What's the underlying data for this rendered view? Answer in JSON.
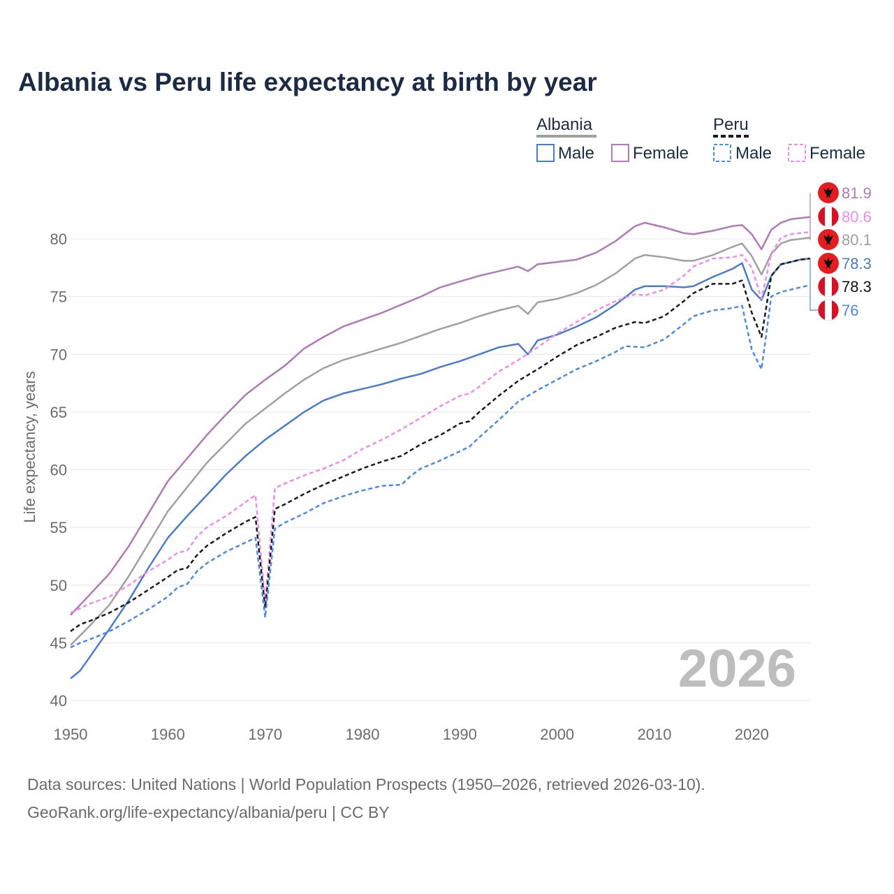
{
  "chart_data": {
    "type": "line",
    "title": "Albania vs Peru life expectancy at birth by year",
    "xlabel": "",
    "ylabel": "Life expectancy, years",
    "xlim": [
      1950,
      2026
    ],
    "ylim": [
      40,
      84
    ],
    "xticks": [
      "1950",
      "1960",
      "1970",
      "1980",
      "1990",
      "2000",
      "2010",
      "2020"
    ],
    "yticks": [
      "40",
      "45",
      "50",
      "55",
      "60",
      "65",
      "70",
      "75",
      "80"
    ],
    "current_year": "2026",
    "legend": {
      "groups": [
        {
          "name": "Albania",
          "items": [
            "Male",
            "Female"
          ]
        },
        {
          "name": "Peru",
          "items": [
            "Male",
            "Female"
          ]
        }
      ]
    },
    "colors": {
      "albania_total": "#a0a0a0",
      "albania_male": "#4a7cc9",
      "albania_female": "#b07ab8",
      "peru_total": "#1a1a1a",
      "peru_male": "#4a8be0",
      "peru_female": "#f08ce8"
    },
    "series": [
      {
        "name": "Albania Female",
        "key": "albania_female",
        "dashed": false,
        "end_label": "81.9",
        "points": [
          [
            1950,
            47.4
          ],
          [
            1952,
            49.2
          ],
          [
            1954,
            51.0
          ],
          [
            1956,
            53.4
          ],
          [
            1958,
            56.2
          ],
          [
            1960,
            59.0
          ],
          [
            1962,
            61.0
          ],
          [
            1964,
            63.0
          ],
          [
            1966,
            64.8
          ],
          [
            1968,
            66.5
          ],
          [
            1970,
            67.8
          ],
          [
            1972,
            69.0
          ],
          [
            1974,
            70.5
          ],
          [
            1976,
            71.5
          ],
          [
            1978,
            72.4
          ],
          [
            1980,
            73.0
          ],
          [
            1982,
            73.6
          ],
          [
            1984,
            74.3
          ],
          [
            1986,
            75.0
          ],
          [
            1988,
            75.8
          ],
          [
            1990,
            76.3
          ],
          [
            1992,
            76.8
          ],
          [
            1994,
            77.2
          ],
          [
            1996,
            77.6
          ],
          [
            1997,
            77.2
          ],
          [
            1998,
            77.8
          ],
          [
            2000,
            78.0
          ],
          [
            2002,
            78.2
          ],
          [
            2004,
            78.8
          ],
          [
            2006,
            79.8
          ],
          [
            2008,
            81.1
          ],
          [
            2009,
            81.4
          ],
          [
            2011,
            81.0
          ],
          [
            2013,
            80.5
          ],
          [
            2014,
            80.4
          ],
          [
            2016,
            80.7
          ],
          [
            2018,
            81.1
          ],
          [
            2019,
            81.2
          ],
          [
            2020,
            80.4
          ],
          [
            2021,
            79.1
          ],
          [
            2022,
            80.8
          ],
          [
            2023,
            81.4
          ],
          [
            2024,
            81.7
          ],
          [
            2025,
            81.8
          ],
          [
            2026,
            81.9
          ]
        ]
      },
      {
        "name": "Albania",
        "key": "albania_total",
        "dashed": false,
        "end_label": "80.1",
        "points": [
          [
            1950,
            44.8
          ],
          [
            1952,
            46.5
          ],
          [
            1954,
            48.3
          ],
          [
            1956,
            50.8
          ],
          [
            1958,
            53.6
          ],
          [
            1960,
            56.4
          ],
          [
            1962,
            58.5
          ],
          [
            1964,
            60.6
          ],
          [
            1966,
            62.3
          ],
          [
            1968,
            64.0
          ],
          [
            1970,
            65.3
          ],
          [
            1972,
            66.6
          ],
          [
            1974,
            67.8
          ],
          [
            1976,
            68.8
          ],
          [
            1978,
            69.5
          ],
          [
            1980,
            70.0
          ],
          [
            1982,
            70.5
          ],
          [
            1984,
            71.0
          ],
          [
            1986,
            71.6
          ],
          [
            1988,
            72.2
          ],
          [
            1990,
            72.7
          ],
          [
            1992,
            73.3
          ],
          [
            1994,
            73.8
          ],
          [
            1996,
            74.2
          ],
          [
            1997,
            73.5
          ],
          [
            1998,
            74.5
          ],
          [
            2000,
            74.8
          ],
          [
            2002,
            75.3
          ],
          [
            2004,
            76.0
          ],
          [
            2006,
            77.0
          ],
          [
            2008,
            78.3
          ],
          [
            2009,
            78.6
          ],
          [
            2011,
            78.4
          ],
          [
            2013,
            78.1
          ],
          [
            2014,
            78.1
          ],
          [
            2016,
            78.6
          ],
          [
            2018,
            79.3
          ],
          [
            2019,
            79.6
          ],
          [
            2020,
            78.5
          ],
          [
            2021,
            76.9
          ],
          [
            2022,
            78.7
          ],
          [
            2023,
            79.6
          ],
          [
            2024,
            79.9
          ],
          [
            2025,
            80.0
          ],
          [
            2026,
            80.1
          ]
        ]
      },
      {
        "name": "Albania Male",
        "key": "albania_male",
        "dashed": false,
        "end_label": "78.3",
        "points": [
          [
            1950,
            41.9
          ],
          [
            1951,
            42.6
          ],
          [
            1952,
            43.8
          ],
          [
            1954,
            46.2
          ],
          [
            1956,
            48.7
          ],
          [
            1958,
            51.5
          ],
          [
            1960,
            54.1
          ],
          [
            1962,
            56.0
          ],
          [
            1964,
            57.8
          ],
          [
            1966,
            59.6
          ],
          [
            1968,
            61.2
          ],
          [
            1970,
            62.6
          ],
          [
            1972,
            63.8
          ],
          [
            1974,
            65.0
          ],
          [
            1976,
            66.0
          ],
          [
            1978,
            66.6
          ],
          [
            1980,
            67.0
          ],
          [
            1982,
            67.4
          ],
          [
            1984,
            67.9
          ],
          [
            1986,
            68.3
          ],
          [
            1988,
            68.9
          ],
          [
            1990,
            69.4
          ],
          [
            1992,
            70.0
          ],
          [
            1994,
            70.6
          ],
          [
            1996,
            70.9
          ],
          [
            1997,
            70.0
          ],
          [
            1998,
            71.2
          ],
          [
            2000,
            71.7
          ],
          [
            2002,
            72.4
          ],
          [
            2004,
            73.2
          ],
          [
            2006,
            74.3
          ],
          [
            2008,
            75.6
          ],
          [
            2009,
            75.9
          ],
          [
            2011,
            75.9
          ],
          [
            2013,
            75.8
          ],
          [
            2014,
            75.9
          ],
          [
            2016,
            76.7
          ],
          [
            2018,
            77.4
          ],
          [
            2019,
            77.9
          ],
          [
            2020,
            75.6
          ],
          [
            2021,
            74.7
          ],
          [
            2022,
            76.8
          ],
          [
            2023,
            77.8
          ],
          [
            2024,
            78.0
          ],
          [
            2025,
            78.2
          ],
          [
            2026,
            78.3
          ]
        ]
      },
      {
        "name": "Peru Female",
        "key": "peru_female",
        "dashed": true,
        "end_label": "80.6",
        "points": [
          [
            1950,
            47.6
          ],
          [
            1952,
            48.4
          ],
          [
            1954,
            49.0
          ],
          [
            1956,
            50.0
          ],
          [
            1958,
            51.2
          ],
          [
            1960,
            52.2
          ],
          [
            1961,
            52.8
          ],
          [
            1962,
            53.0
          ],
          [
            1963,
            54.2
          ],
          [
            1964,
            55.0
          ],
          [
            1966,
            56.0
          ],
          [
            1968,
            57.2
          ],
          [
            1969,
            57.8
          ],
          [
            1970,
            48.5
          ],
          [
            1971,
            58.4
          ],
          [
            1972,
            58.8
          ],
          [
            1974,
            59.5
          ],
          [
            1976,
            60.1
          ],
          [
            1978,
            60.8
          ],
          [
            1980,
            61.8
          ],
          [
            1982,
            62.6
          ],
          [
            1984,
            63.5
          ],
          [
            1986,
            64.5
          ],
          [
            1988,
            65.5
          ],
          [
            1990,
            66.4
          ],
          [
            1991,
            66.6
          ],
          [
            1992,
            67.2
          ],
          [
            1994,
            68.5
          ],
          [
            1996,
            69.5
          ],
          [
            1998,
            70.6
          ],
          [
            2000,
            71.8
          ],
          [
            2002,
            72.8
          ],
          [
            2004,
            73.8
          ],
          [
            2006,
            74.6
          ],
          [
            2008,
            75.2
          ],
          [
            2009,
            75.1
          ],
          [
            2011,
            75.6
          ],
          [
            2013,
            76.8
          ],
          [
            2014,
            77.6
          ],
          [
            2016,
            78.3
          ],
          [
            2018,
            78.4
          ],
          [
            2019,
            78.6
          ],
          [
            2020,
            77.5
          ],
          [
            2021,
            74.8
          ],
          [
            2022,
            78.7
          ],
          [
            2023,
            80.1
          ],
          [
            2024,
            80.4
          ],
          [
            2025,
            80.5
          ],
          [
            2026,
            80.6
          ]
        ]
      },
      {
        "name": "Peru",
        "key": "peru_total",
        "dashed": true,
        "end_label": "78.3",
        "points": [
          [
            1950,
            46.0
          ],
          [
            1951,
            46.6
          ],
          [
            1952,
            46.9
          ],
          [
            1954,
            47.6
          ],
          [
            1956,
            48.5
          ],
          [
            1958,
            49.6
          ],
          [
            1960,
            50.7
          ],
          [
            1961,
            51.3
          ],
          [
            1962,
            51.5
          ],
          [
            1963,
            52.6
          ],
          [
            1964,
            53.4
          ],
          [
            1966,
            54.5
          ],
          [
            1968,
            55.5
          ],
          [
            1969,
            55.9
          ],
          [
            1970,
            48.0
          ],
          [
            1971,
            56.6
          ],
          [
            1972,
            57.0
          ],
          [
            1974,
            57.9
          ],
          [
            1976,
            58.7
          ],
          [
            1978,
            59.4
          ],
          [
            1980,
            60.1
          ],
          [
            1982,
            60.7
          ],
          [
            1984,
            61.2
          ],
          [
            1986,
            62.2
          ],
          [
            1988,
            63.0
          ],
          [
            1990,
            64.0
          ],
          [
            1991,
            64.2
          ],
          [
            1992,
            65.0
          ],
          [
            1994,
            66.4
          ],
          [
            1996,
            67.7
          ],
          [
            1998,
            68.7
          ],
          [
            2000,
            69.8
          ],
          [
            2002,
            70.8
          ],
          [
            2004,
            71.5
          ],
          [
            2006,
            72.3
          ],
          [
            2008,
            72.8
          ],
          [
            2009,
            72.7
          ],
          [
            2011,
            73.3
          ],
          [
            2013,
            74.6
          ],
          [
            2014,
            75.3
          ],
          [
            2016,
            76.1
          ],
          [
            2018,
            76.1
          ],
          [
            2019,
            76.4
          ],
          [
            2020,
            73.6
          ],
          [
            2021,
            71.5
          ],
          [
            2022,
            76.8
          ],
          [
            2023,
            77.8
          ],
          [
            2024,
            78.0
          ],
          [
            2025,
            78.2
          ],
          [
            2026,
            78.3
          ]
        ]
      },
      {
        "name": "Peru Male",
        "key": "peru_male",
        "dashed": true,
        "end_label": "76",
        "points": [
          [
            1950,
            44.6
          ],
          [
            1951,
            45.0
          ],
          [
            1952,
            45.3
          ],
          [
            1954,
            46.0
          ],
          [
            1956,
            46.9
          ],
          [
            1958,
            47.9
          ],
          [
            1960,
            49.0
          ],
          [
            1961,
            49.8
          ],
          [
            1962,
            50.1
          ],
          [
            1963,
            51.2
          ],
          [
            1964,
            51.9
          ],
          [
            1966,
            52.9
          ],
          [
            1968,
            53.7
          ],
          [
            1969,
            54.1
          ],
          [
            1970,
            47.2
          ],
          [
            1971,
            54.9
          ],
          [
            1972,
            55.4
          ],
          [
            1974,
            56.2
          ],
          [
            1976,
            57.1
          ],
          [
            1978,
            57.7
          ],
          [
            1980,
            58.2
          ],
          [
            1982,
            58.6
          ],
          [
            1984,
            58.7
          ],
          [
            1985,
            59.5
          ],
          [
            1986,
            60.1
          ],
          [
            1988,
            60.8
          ],
          [
            1990,
            61.6
          ],
          [
            1991,
            62.0
          ],
          [
            1992,
            62.8
          ],
          [
            1994,
            64.3
          ],
          [
            1996,
            65.9
          ],
          [
            1998,
            66.9
          ],
          [
            2000,
            67.8
          ],
          [
            2002,
            68.7
          ],
          [
            2004,
            69.4
          ],
          [
            2006,
            70.2
          ],
          [
            2007,
            70.7
          ],
          [
            2009,
            70.6
          ],
          [
            2011,
            71.3
          ],
          [
            2013,
            72.6
          ],
          [
            2014,
            73.3
          ],
          [
            2016,
            73.8
          ],
          [
            2018,
            74.0
          ],
          [
            2019,
            74.2
          ],
          [
            2020,
            70.4
          ],
          [
            2021,
            68.7
          ],
          [
            2022,
            75.0
          ],
          [
            2023,
            75.4
          ],
          [
            2024,
            75.6
          ],
          [
            2025,
            75.8
          ],
          [
            2026,
            76.0
          ]
        ]
      }
    ],
    "end_labels": [
      {
        "key": "albania_female",
        "flag": "albania",
        "text": "81.9"
      },
      {
        "key": "peru_female",
        "flag": "peru",
        "text": "80.6"
      },
      {
        "key": "albania_total",
        "flag": "albania",
        "text": "80.1"
      },
      {
        "key": "albania_male",
        "flag": "albania",
        "text": "78.3"
      },
      {
        "key": "peru_total",
        "flag": "peru",
        "text": "78.3"
      },
      {
        "key": "peru_male",
        "flag": "peru",
        "text": "76"
      }
    ]
  },
  "footer": {
    "source_line1": "Data sources: United Nations | World Population Prospects (1950–2026, retrieved 2026-03-10).",
    "source_line2": "GeoRank.org/life-expectancy/albania/peru | CC BY"
  }
}
